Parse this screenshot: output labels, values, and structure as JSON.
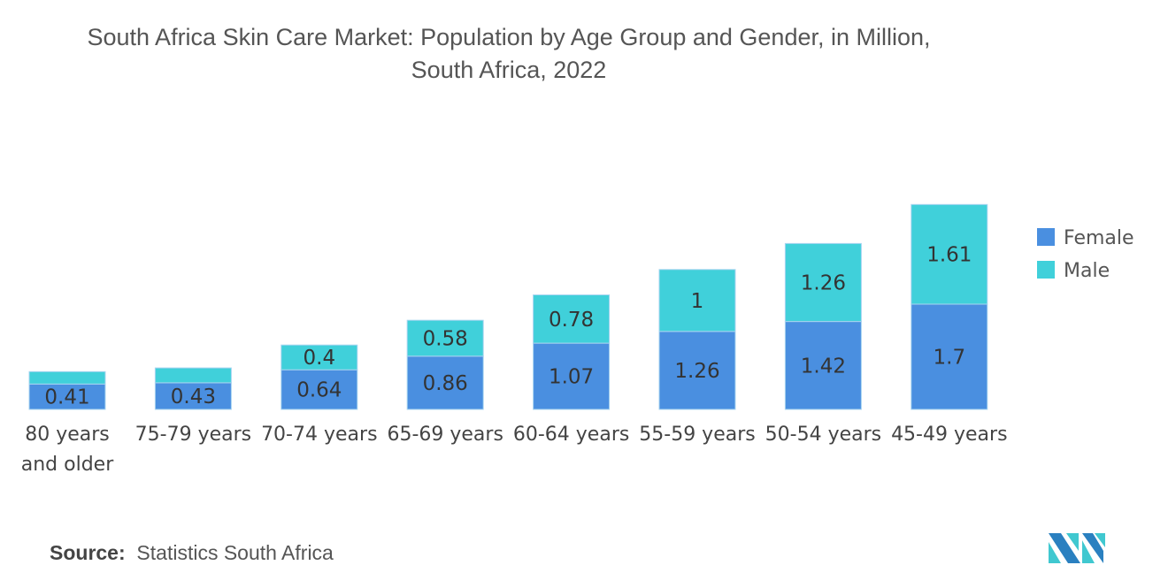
{
  "chart_data": {
    "type": "bar",
    "stacked": true,
    "title": "South Africa Skin Care Market: Population by Age Group and Gender, in Million,",
    "subtitle": "South Africa, 2022",
    "categories": [
      [
        "80 years",
        "and older"
      ],
      [
        "75-79 years"
      ],
      [
        "70-74 years"
      ],
      [
        "65-69 years"
      ],
      [
        "60-64 years"
      ],
      [
        "55-59 years"
      ],
      [
        "50-54 years"
      ],
      [
        "45-49 years"
      ]
    ],
    "series": [
      {
        "name": "Female",
        "color": "#4a8fe0",
        "values": [
          0.41,
          0.43,
          0.64,
          0.86,
          1.07,
          1.26,
          1.42,
          1.7
        ],
        "labels": [
          "0.41",
          "0.43",
          "0.64",
          "0.86",
          "1.07",
          "1.26",
          "1.42",
          "1.7"
        ]
      },
      {
        "name": "Male",
        "color": "#40d0da",
        "values": [
          0.2,
          0.24,
          0.4,
          0.58,
          0.78,
          1,
          1.26,
          1.61
        ],
        "labels": [
          "",
          "",
          "0.4",
          "0.58",
          "0.78",
          "1",
          "1.26",
          "1.61"
        ]
      }
    ],
    "legend_position": "right",
    "grid": false,
    "ylim": [
      0,
      3.5
    ]
  },
  "source": {
    "label": "Source:",
    "text": "Statistics South Africa"
  }
}
